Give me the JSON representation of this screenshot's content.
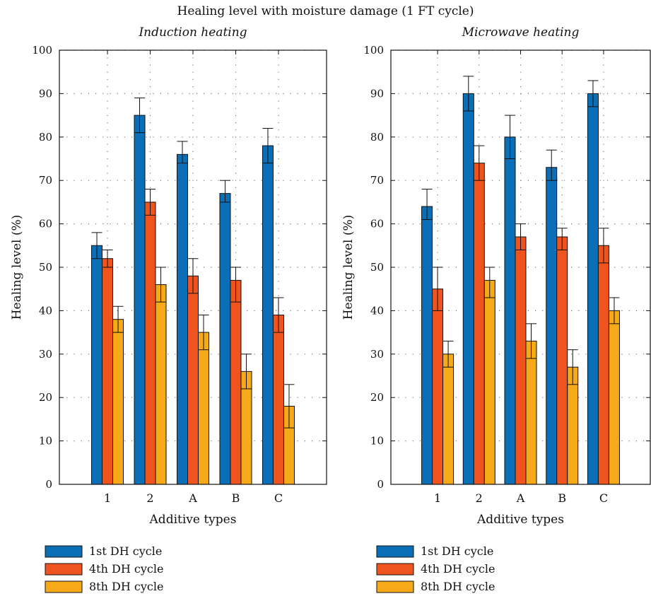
{
  "figure_title": "Healing level with moisture damage (1 FT cycle)",
  "series_colors": [
    "#0b6fb8",
    "#f0541e",
    "#f7aa19"
  ],
  "chart_data": [
    {
      "type": "bar",
      "title": "Induction heating",
      "xlabel": "Additive types",
      "ylabel": "Healing level (%)",
      "ylim": [
        0,
        100
      ],
      "yticks": [
        0,
        10,
        20,
        30,
        40,
        50,
        60,
        70,
        80,
        90,
        100
      ],
      "grid": true,
      "legend_position": "bottom",
      "categories": [
        "1",
        "2",
        "A",
        "B",
        "C"
      ],
      "series": [
        {
          "name": "1st DH cycle",
          "values": [
            55,
            85,
            76,
            67,
            78
          ],
          "error_low": [
            52,
            81,
            74,
            65,
            74
          ],
          "error_high": [
            58,
            89,
            79,
            70,
            82
          ]
        },
        {
          "name": "4th DH cycle",
          "values": [
            52,
            65,
            48,
            47,
            39
          ],
          "error_low": [
            50,
            62,
            44,
            42,
            35
          ],
          "error_high": [
            54,
            68,
            52,
            50,
            43
          ]
        },
        {
          "name": "8th DH cycle",
          "values": [
            38,
            46,
            35,
            26,
            18
          ],
          "error_low": [
            35,
            42,
            31,
            22,
            13
          ],
          "error_high": [
            41,
            50,
            39,
            30,
            23
          ]
        }
      ]
    },
    {
      "type": "bar",
      "title": "Microwave heating",
      "xlabel": "Additive types",
      "ylabel": "Healing level (%)",
      "ylim": [
        0,
        100
      ],
      "yticks": [
        0,
        10,
        20,
        30,
        40,
        50,
        60,
        70,
        80,
        90,
        100
      ],
      "grid": true,
      "legend_position": "bottom",
      "categories": [
        "1",
        "2",
        "A",
        "B",
        "C"
      ],
      "series": [
        {
          "name": "1st DH cycle",
          "values": [
            64,
            90,
            80,
            73,
            90
          ],
          "error_low": [
            61,
            86,
            75,
            70,
            87
          ],
          "error_high": [
            68,
            94,
            85,
            77,
            93
          ]
        },
        {
          "name": "4th DH cycle",
          "values": [
            45,
            74,
            57,
            57,
            55
          ],
          "error_low": [
            40,
            70,
            54,
            54,
            51
          ],
          "error_high": [
            50,
            78,
            60,
            59,
            59
          ]
        },
        {
          "name": "8th DH cycle",
          "values": [
            30,
            47,
            33,
            27,
            40
          ],
          "error_low": [
            27,
            43,
            29,
            23,
            37
          ],
          "error_high": [
            33,
            50,
            37,
            31,
            43
          ]
        }
      ]
    }
  ]
}
